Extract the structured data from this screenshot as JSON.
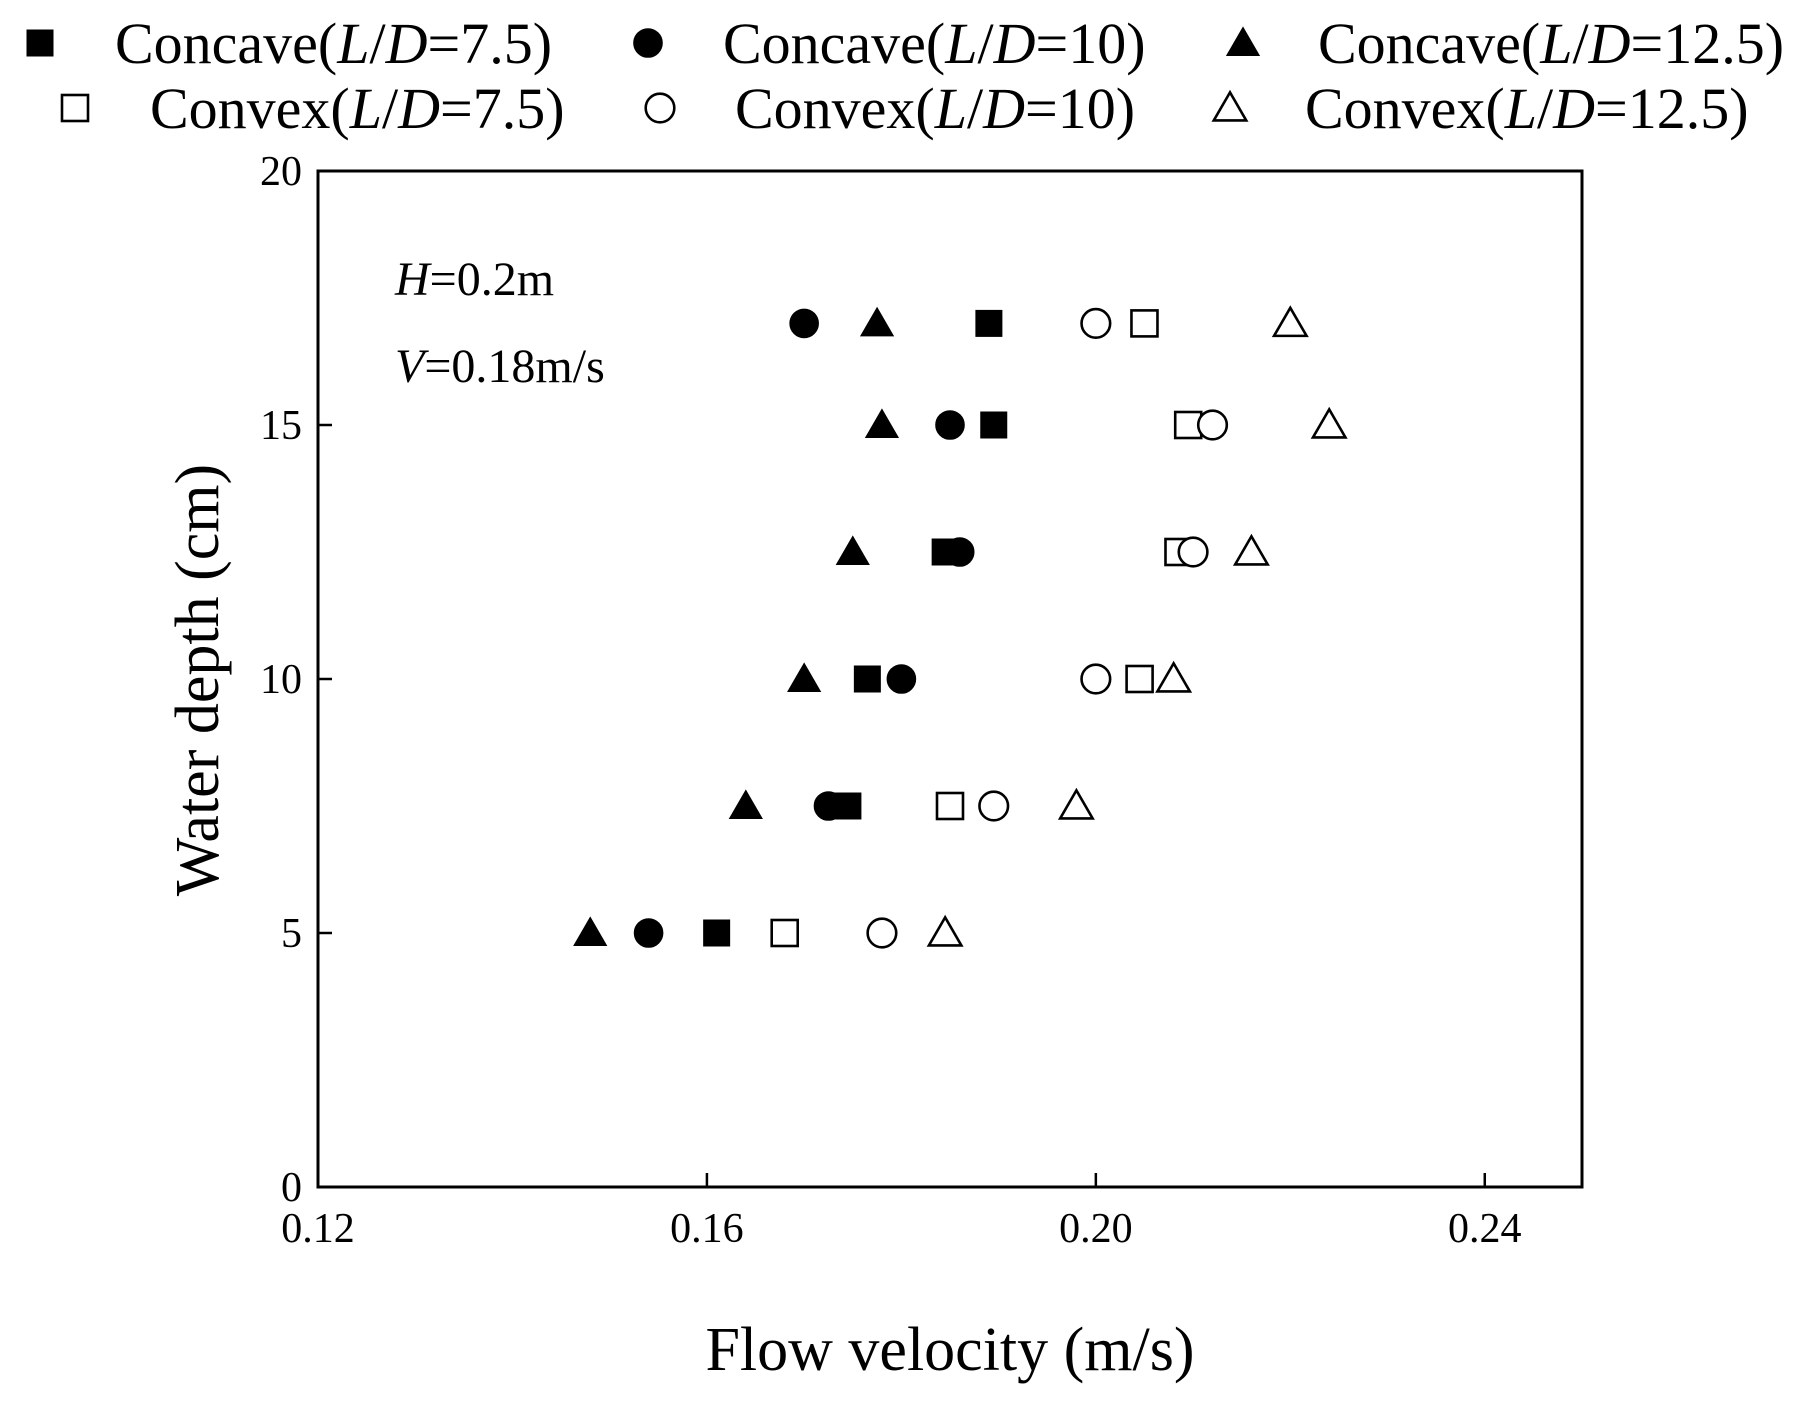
{
  "chart_data": {
    "type": "scatter",
    "title": "",
    "xlabel": "Flow velocity (m/s)",
    "ylabel": "Water depth (cm)",
    "xlim": [
      0.12,
      0.25
    ],
    "ylim": [
      0,
      20
    ],
    "xticks": [
      0.12,
      0.16,
      0.2,
      0.24
    ],
    "xtick_labels": [
      "0.12",
      "0.16",
      "0.20",
      "0.24"
    ],
    "yticks": [
      0,
      5,
      10,
      15,
      20
    ],
    "ytick_labels": [
      "0",
      "5",
      "10",
      "15",
      "20"
    ],
    "grid": false,
    "legend_position": "top",
    "annotations": [
      {
        "var": "H",
        "rest": "=0.2m"
      },
      {
        "var": "V",
        "rest": "=0.18m/s"
      }
    ],
    "series": [
      {
        "name": "Concave(L/D=7.5)",
        "prefix": "Concave(",
        "var1": "L",
        "var2": "D",
        "suffix": "=7.5)",
        "marker": "square",
        "filled": true,
        "x": [
          0.161,
          0.1745,
          0.1765,
          0.1845,
          0.1895,
          0.189
        ],
        "y": [
          5,
          7.5,
          10,
          12.5,
          15,
          17
        ]
      },
      {
        "name": "Concave(L/D=10)",
        "prefix": "Concave(",
        "var1": "L",
        "var2": "D",
        "suffix": "=10)",
        "marker": "circle",
        "filled": true,
        "x": [
          0.154,
          0.1725,
          0.18,
          0.186,
          0.185,
          0.17
        ],
        "y": [
          5,
          7.5,
          10,
          12.5,
          15,
          17
        ]
      },
      {
        "name": "Concave(L/D=12.5)",
        "prefix": "Concave(",
        "var1": "L",
        "var2": "D",
        "suffix": "=12.5)",
        "marker": "triangle",
        "filled": true,
        "x": [
          0.148,
          0.164,
          0.17,
          0.175,
          0.178,
          0.1775
        ],
        "y": [
          5,
          7.5,
          10,
          12.5,
          15,
          17
        ]
      },
      {
        "name": "Convex(L/D=7.5)",
        "prefix": "Convex(",
        "var1": "L",
        "var2": "D",
        "suffix": "=7.5)",
        "marker": "square",
        "filled": false,
        "x": [
          0.168,
          0.185,
          0.2045,
          0.2085,
          0.2095,
          0.205
        ],
        "y": [
          5,
          7.5,
          10,
          12.5,
          15,
          17
        ]
      },
      {
        "name": "Convex(L/D=10)",
        "prefix": "Convex(",
        "var1": "L",
        "var2": "D",
        "suffix": "=10)",
        "marker": "circle",
        "filled": false,
        "x": [
          0.178,
          0.1895,
          0.2,
          0.21,
          0.212,
          0.2
        ],
        "y": [
          5,
          7.5,
          10,
          12.5,
          15,
          17
        ]
      },
      {
        "name": "Convex(L/D=12.5)",
        "prefix": "Convex(",
        "var1": "L",
        "var2": "D",
        "suffix": "=12.5)",
        "marker": "triangle",
        "filled": false,
        "x": [
          0.1845,
          0.198,
          0.208,
          0.216,
          0.224,
          0.22
        ],
        "y": [
          5,
          7.5,
          10,
          12.5,
          15,
          17
        ]
      }
    ]
  }
}
